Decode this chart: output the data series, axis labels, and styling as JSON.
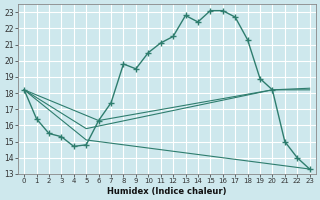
{
  "xlabel": "Humidex (Indice chaleur)",
  "xlim": [
    -0.5,
    23.5
  ],
  "ylim": [
    13,
    23.5
  ],
  "yticks": [
    13,
    14,
    15,
    16,
    17,
    18,
    19,
    20,
    21,
    22,
    23
  ],
  "xticks": [
    0,
    1,
    2,
    3,
    4,
    5,
    6,
    7,
    8,
    9,
    10,
    11,
    12,
    13,
    14,
    15,
    16,
    17,
    18,
    19,
    20,
    21,
    22,
    23
  ],
  "bg_color": "#cee8ed",
  "grid_color": "#ffffff",
  "line_color": "#2e7d6e",
  "main_line": {
    "x": [
      0,
      1,
      2,
      3,
      4,
      5,
      6,
      7,
      8,
      9,
      10,
      11,
      12,
      13,
      14,
      15,
      16,
      17,
      18,
      19,
      20,
      21,
      22,
      23
    ],
    "y": [
      18.2,
      16.4,
      15.5,
      15.3,
      14.7,
      14.8,
      16.3,
      17.4,
      19.8,
      19.5,
      20.5,
      21.1,
      21.5,
      22.8,
      22.4,
      23.1,
      23.1,
      22.7,
      21.3,
      18.9,
      18.2,
      15.0,
      14.0,
      13.3
    ]
  },
  "straight_lines": [
    {
      "x": [
        0,
        5,
        23
      ],
      "y": [
        18.2,
        15.1,
        13.3
      ]
    },
    {
      "x": [
        0,
        5,
        20,
        23
      ],
      "y": [
        18.2,
        15.8,
        18.2,
        18.2
      ]
    },
    {
      "x": [
        0,
        6,
        20,
        23
      ],
      "y": [
        18.2,
        16.3,
        18.2,
        18.3
      ]
    }
  ]
}
